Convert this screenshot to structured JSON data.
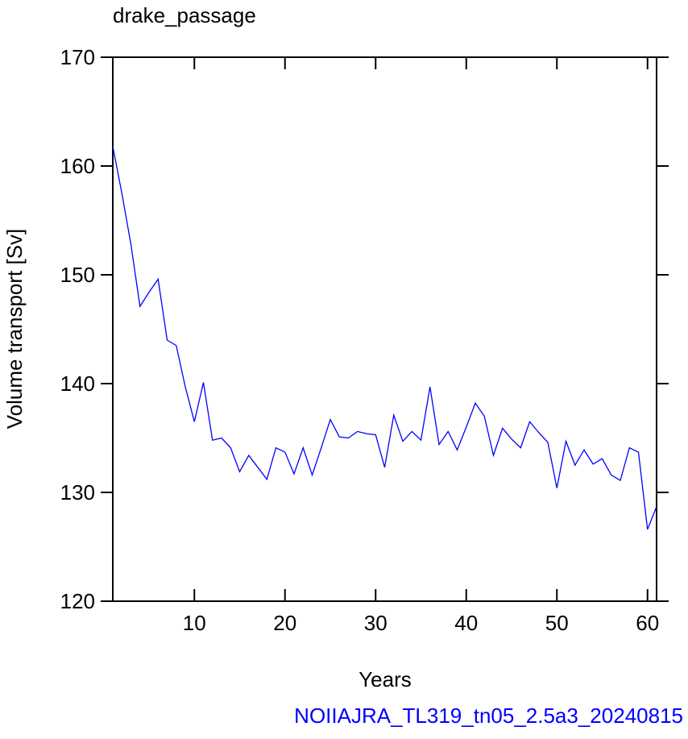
{
  "chart_data": {
    "type": "line",
    "title": "drake_passage",
    "x_label": "Years",
    "y_label": "Volume transport [Sv]",
    "footer": "NOIIAJRA_TL319_tn05_2.5a3_20240815",
    "x": [
      1,
      2,
      3,
      4,
      5,
      6,
      7,
      8,
      9,
      10,
      11,
      12,
      13,
      14,
      15,
      16,
      17,
      18,
      19,
      20,
      21,
      22,
      23,
      24,
      25,
      26,
      27,
      28,
      29,
      30,
      31,
      32,
      33,
      34,
      35,
      36,
      37,
      38,
      39,
      40,
      41,
      42,
      43,
      44,
      45,
      46,
      47,
      48,
      49,
      50,
      51,
      52,
      53,
      54,
      55,
      56,
      57,
      58,
      59,
      60,
      61
    ],
    "series": [
      {
        "color": "#0000ff",
        "values": [
          161.8,
          157.5,
          152.8,
          147.1,
          148.4,
          149.6,
          144.0,
          143.5,
          139.7,
          136.5,
          140.1,
          134.8,
          135.0,
          134.1,
          131.9,
          133.4,
          132.3,
          131.2,
          134.1,
          133.7,
          131.7,
          134.1,
          131.6,
          134.1,
          136.7,
          135.1,
          135.0,
          135.6,
          135.4,
          135.3,
          132.3,
          137.1,
          134.7,
          135.6,
          134.8,
          139.7,
          134.4,
          135.6,
          133.9,
          136.0,
          138.2,
          137.0,
          133.4,
          135.9,
          134.9,
          134.1,
          136.5,
          135.5,
          134.6,
          130.4,
          134.7,
          132.5,
          133.9,
          132.6,
          133.1,
          131.6,
          131.1,
          134.1,
          133.7,
          126.6,
          128.7
        ]
      }
    ],
    "xlim": [
      1,
      61
    ],
    "ylim": [
      120,
      170
    ],
    "xticks": [
      10,
      20,
      30,
      40,
      50,
      60
    ],
    "yticks": [
      120,
      130,
      140,
      150,
      160,
      170
    ]
  }
}
